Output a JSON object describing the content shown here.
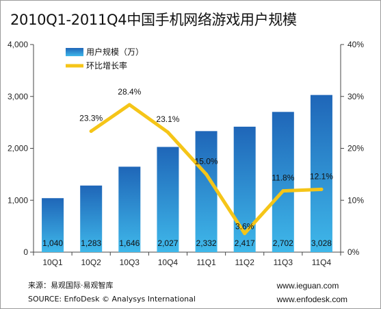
{
  "title": "2010Q1-2011Q4中国手机网络游戏用户规模",
  "footer": {
    "source_cn": "来源：易观国际·易观智库",
    "source_en": "SOURCE: EnfoDesk © Analysys International",
    "site1": "www.ieguan.com",
    "site2": "www.enfodesk.com"
  },
  "colors": {
    "bar_top": "#1f66b8",
    "bar_bottom": "#3fb8ea",
    "line": "#f5c518"
  },
  "chart_data": {
    "type": "bar",
    "title": "2010Q1-2011Q4中国手机网络游戏用户规模",
    "categories": [
      "10Q1",
      "10Q2",
      "10Q3",
      "10Q4",
      "11Q1",
      "11Q2",
      "11Q3",
      "11Q4"
    ],
    "series": [
      {
        "name": "用户规模（万）",
        "type": "bar",
        "axis": "left",
        "values": [
          1040,
          1283,
          1646,
          2027,
          2332,
          2417,
          2702,
          3028
        ],
        "labels": [
          "1,040",
          "1,283",
          "1,646",
          "2,027",
          "2,332",
          "2,417",
          "2,702",
          "3,028"
        ]
      },
      {
        "name": "环比增长率",
        "type": "line",
        "axis": "right",
        "values": [
          null,
          23.3,
          28.4,
          23.1,
          15.0,
          3.6,
          11.8,
          12.1
        ],
        "labels": [
          "",
          "23.3%",
          "28.4%",
          "23.1%",
          "15.0%",
          "3.6%",
          "11.8%",
          "12.1%"
        ]
      }
    ],
    "y_left": {
      "min": 0,
      "max": 4000,
      "ticks": [
        "0",
        "1,000",
        "2,000",
        "3,000",
        "4,000"
      ]
    },
    "y_right": {
      "min": 0,
      "max": 40,
      "ticks": [
        "0%",
        "10%",
        "20%",
        "30%",
        "40%"
      ]
    },
    "grid": false,
    "legend": "top-left"
  }
}
